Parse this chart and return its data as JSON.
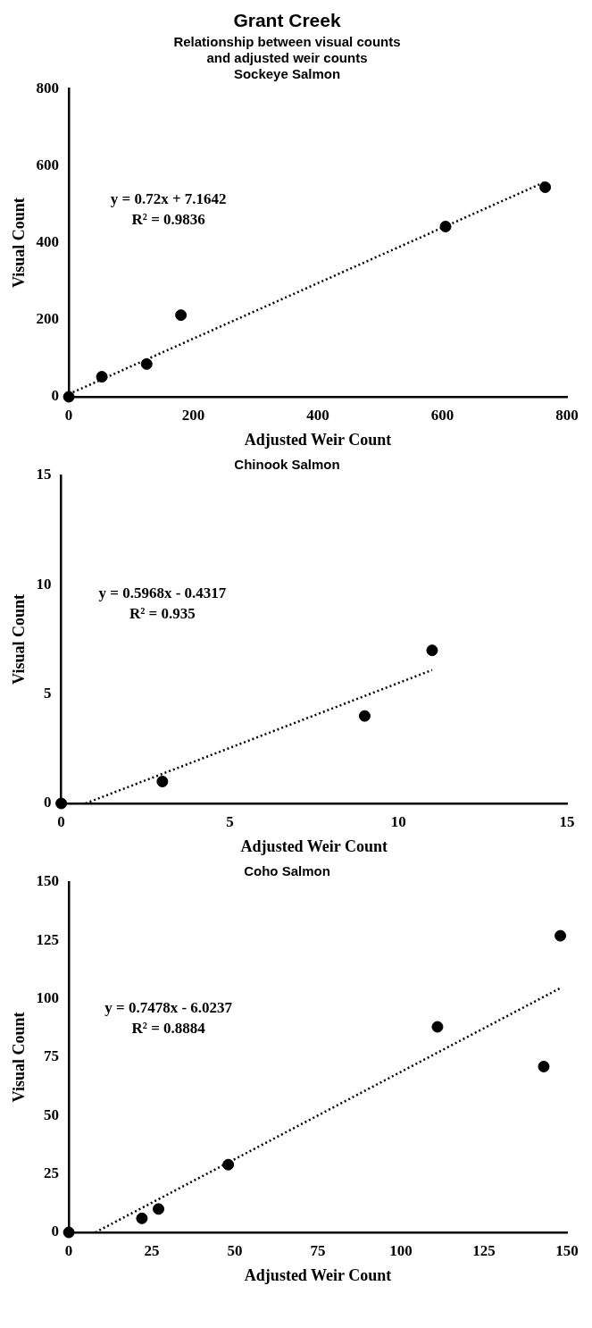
{
  "chart_data": [
    {
      "type": "scatter",
      "title": "Grant Creek",
      "subtitle": "Relationship between visual counts\nand adjusted weir counts\nSockeye Salmon",
      "xlabel": "Adjusted Weir Count",
      "ylabel": "Visual Count",
      "annotations": [
        "y = 0.72x + 7.1642",
        "R² = 0.9836"
      ],
      "xlim": [
        0,
        800
      ],
      "xticks": [
        0,
        200,
        400,
        600,
        800
      ],
      "ylim": [
        0,
        800
      ],
      "yticks": [
        0,
        200,
        400,
        600,
        800
      ],
      "grid": false,
      "legend": false,
      "marker": "circle",
      "series": [
        {
          "type": "scatter",
          "color": "#000000",
          "x": [
            0,
            53,
            125,
            180,
            605,
            765
          ],
          "values": [
            0,
            52,
            85,
            212,
            442,
            544
          ]
        },
        {
          "type": "line",
          "color": "#000000",
          "line_style": "dotted",
          "marker": "none",
          "x": [
            0,
            765
          ],
          "values": [
            7,
            558
          ]
        }
      ]
    },
    {
      "type": "scatter",
      "title": "Chinook Salmon",
      "xlabel": "Adjusted Weir Count",
      "ylabel": "Visual Count",
      "annotations": [
        "y = 0.5968x - 0.4317",
        "R² = 0.935"
      ],
      "xlim": [
        0,
        15
      ],
      "xticks": [
        0,
        5,
        10,
        15
      ],
      "ylim": [
        0,
        15
      ],
      "yticks": [
        0,
        5,
        10,
        15
      ],
      "grid": false,
      "legend": false,
      "marker": "circle",
      "series": [
        {
          "type": "scatter",
          "color": "#000000",
          "x": [
            0,
            3,
            9,
            11
          ],
          "values": [
            0,
            1,
            4,
            7
          ]
        },
        {
          "type": "line",
          "color": "#000000",
          "line_style": "dotted",
          "marker": "none",
          "x": [
            0.72,
            11
          ],
          "values": [
            0,
            6.1
          ]
        }
      ]
    },
    {
      "type": "scatter",
      "title": "Coho Salmon",
      "xlabel": "Adjusted Weir Count",
      "ylabel": "Visual Count",
      "annotations": [
        "y = 0.7478x - 6.0237",
        "R² = 0.8884"
      ],
      "xlim": [
        0,
        150
      ],
      "xticks": [
        0,
        25,
        50,
        75,
        100,
        125,
        150
      ],
      "ylim": [
        0,
        150
      ],
      "yticks": [
        0,
        25,
        50,
        75,
        100,
        125,
        150
      ],
      "grid": false,
      "legend": false,
      "marker": "circle",
      "series": [
        {
          "type": "scatter",
          "color": "#000000",
          "x": [
            0,
            22,
            27,
            48,
            111,
            143,
            148
          ],
          "values": [
            0,
            6,
            10,
            29,
            88,
            71,
            127
          ]
        },
        {
          "type": "line",
          "color": "#000000",
          "line_style": "dotted",
          "marker": "none",
          "x": [
            8,
            148
          ],
          "values": [
            0,
            104.6
          ]
        }
      ]
    }
  ]
}
